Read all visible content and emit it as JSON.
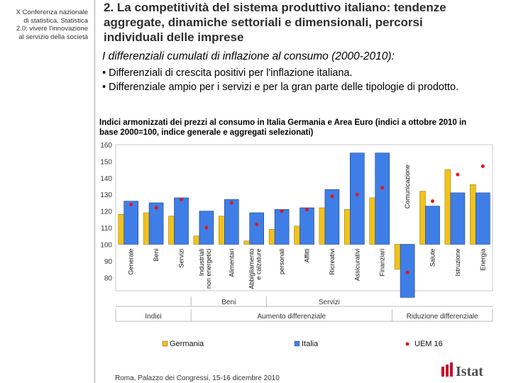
{
  "sidebar": {
    "lines": [
      "X Conferenza nazionale",
      "di statistica. Statistica",
      "2.0: vivere l'innovazione",
      "al servizio della società"
    ]
  },
  "header": {
    "title_lines": [
      "2. La competitività del sistema produttivo italiano: tendenze",
      "aggregate, dinamiche settoriali e dimensionali, percorsi",
      "individuali delle imprese"
    ]
  },
  "subtitle": "I differenziali cumulati di inflazione al consumo (2000-2010):",
  "bullets": [
    "• Differenziali di crescita positivi per l'inflazione italiana.",
    "• Differenziale ampio per i servizi e per la gran parte delle tipologie di prodotto."
  ],
  "chart_title_lines": [
    "Indici armonizzati dei prezzi al consumo in Italia Germania e Area Euro (indici a ottobre 2010 in",
    "base 2000=100, indice generale e aggregati selezionati)"
  ],
  "footer": "Roma, Palazzo dei Congressi, 15-16 dicembre 2010",
  "logo": {
    "text": "Istat"
  },
  "colors": {
    "germania": "#f2c21b",
    "italia": "#3e7ee6",
    "uem": "#e2161b",
    "plot_bg": "#ffffff"
  },
  "chart_data": {
    "type": "bar",
    "ylim": [
      72,
      160
    ],
    "yticks": [
      80,
      90,
      100,
      110,
      120,
      130,
      140,
      150,
      160
    ],
    "categories": [
      "Generale",
      "Beni",
      "Servizi",
      "Industriali non energetici",
      "Alimentari",
      "Abbigliamento e calzature",
      "personali",
      "Affitti",
      "Ricreativi",
      "Assicurativi",
      "Finanziari",
      "Comunicazione",
      "Salute",
      "Istruzione",
      "Energia"
    ],
    "series": [
      {
        "name": "Germania",
        "values": [
          118,
          119,
          117,
          105,
          117,
          102,
          109,
          111,
          122,
          121,
          128,
          85,
          132,
          145,
          136
        ]
      },
      {
        "name": "Italia",
        "values": [
          126,
          125,
          128,
          120,
          127,
          119,
          121,
          122,
          133,
          155,
          155,
          68,
          123,
          131,
          131
        ]
      },
      {
        "name": "UEM 16",
        "values": [
          124,
          122,
          127,
          110,
          125,
          112,
          120,
          121,
          129,
          130,
          134,
          83,
          126,
          142,
          147
        ]
      }
    ],
    "category_groups": [
      {
        "label": "Indici",
        "categories": [
          "Generale",
          "Beni",
          "Servizi"
        ]
      },
      {
        "label": "Aumento differenziale",
        "categories": [
          "Industriali non energetici",
          "Alimentari",
          "Abbigliamento e calzature",
          "personali",
          "Affitti",
          "Ricreativi",
          "Assicurativi",
          "Finanziari"
        ]
      },
      {
        "label": "Riduzione differenziale",
        "categories": [
          "Comunicazione",
          "Salute",
          "Istruzione",
          "Energia"
        ]
      }
    ],
    "sub_groups": [
      {
        "label": "Beni",
        "categories": [
          "Industriali non energetici",
          "Alimentari",
          "Abbigliamento e calzature"
        ]
      },
      {
        "label": "Servizi",
        "categories": [
          "personali",
          "Affitti",
          "Ricreativi",
          "Assicurativi",
          "Finanziari"
        ]
      }
    ],
    "legend": [
      "Germania",
      "Italia",
      "UEM 16"
    ]
  }
}
